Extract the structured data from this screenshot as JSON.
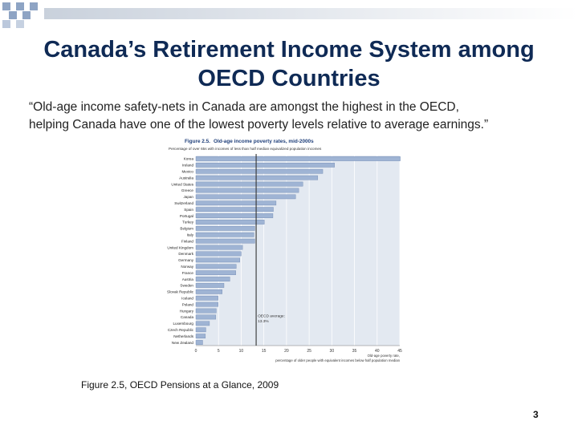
{
  "slide": {
    "title_line1": "Canada’s Retirement Income System among",
    "title_line2": "OECD Countries",
    "quote_line1": "“Old-age income safety-nets in Canada are amongst the highest in the OECD,",
    "quote_line2": "helping Canada have one of the lowest poverty levels relative to average earnings.”",
    "caption": "Figure 2.5, OECD Pensions at a Glance, 2009",
    "page_number": "3"
  },
  "colors": {
    "title": "#0f2a55",
    "deco_square": "#8ea4c4",
    "deco_band": "#c9d1dc",
    "bar": "#9fb4d4",
    "bar_stroke": "#6f88b2",
    "plot_bg": "#e3e9f1",
    "figure_label": "#1f3f7a"
  },
  "chart_data": {
    "type": "bar",
    "orientation": "horizontal",
    "figure_label": "Figure 2.5.",
    "title": "Old-age income poverty rates, mid-2000s",
    "subtitle": "Percentage of over 65s with incomes of less than half median equivalized population incomes",
    "categories": [
      "Korea",
      "Ireland",
      "Mexico",
      "Australia",
      "United States",
      "Greece",
      "Japan",
      "Switzerland",
      "Spain",
      "Portugal",
      "Turkey",
      "Belgium",
      "Italy",
      "Finland",
      "United Kingdom",
      "Denmark",
      "Germany",
      "Norway",
      "France",
      "Austria",
      "Sweden",
      "Slovak Republic",
      "Iceland",
      "Poland",
      "Hungary",
      "Canada",
      "Luxembourg",
      "Czech Republic",
      "Netherlands",
      "New Zealand"
    ],
    "values": [
      45.1,
      30.6,
      28.0,
      26.9,
      23.6,
      22.7,
      22.0,
      17.7,
      17.1,
      17.0,
      15.1,
      13.0,
      12.8,
      13.0,
      10.3,
      10.0,
      9.7,
      8.9,
      8.8,
      7.5,
      6.2,
      5.8,
      4.9,
      4.9,
      4.5,
      4.4,
      3.0,
      2.2,
      2.1,
      1.5
    ],
    "xticks": [
      0,
      5,
      10,
      15,
      20,
      25,
      30,
      35,
      40,
      45
    ],
    "xlim": [
      0,
      45
    ],
    "reference_line": {
      "value": 13.3,
      "label_line1": "OECD average:",
      "label_line2": "13.3%"
    },
    "axis_note_line1": "Old-age poverty rate,",
    "axis_note_line2": "percentage of older people with equivalent incomes below half population median",
    "grid": true
  }
}
